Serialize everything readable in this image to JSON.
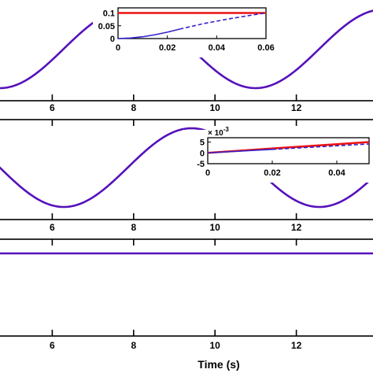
{
  "figure": {
    "xlabel": "Time (s)",
    "colors": {
      "reference": "#ee1111",
      "response": "#3322cc",
      "overlap": "#5511bb"
    }
  },
  "chart_data": [
    {
      "panel": "top",
      "type": "line",
      "xlabel": "",
      "ylabel": "",
      "xlim": [
        4.6,
        14.0
      ],
      "xticks": [
        6,
        8,
        10,
        12
      ],
      "tick_labels": [
        "6",
        "8",
        "10",
        "12"
      ],
      "series": [
        {
          "color": "#5511bb",
          "function": "sine",
          "amplitude": 1,
          "period": 6.283,
          "phase": 0
        }
      ]
    },
    {
      "panel": "top-inset",
      "type": "line",
      "xlim": [
        0,
        0.06
      ],
      "ylim": [
        0,
        0.12
      ],
      "xticks": [
        0,
        0.02,
        0.04,
        0.06
      ],
      "xtick_labels": [
        "0",
        "0.02",
        "0.04",
        "0.06"
      ],
      "yticks": [
        0,
        0.05,
        0.1
      ],
      "ytick_labels": [
        "0",
        "0.05",
        "0.1"
      ],
      "series": [
        {
          "color": "#ee1111",
          "style": "solid",
          "x": [
            0,
            0.06
          ],
          "y": [
            0.1,
            0.1
          ]
        },
        {
          "color": "#3322cc",
          "style": "solid",
          "x": [
            0,
            0.005,
            0.01,
            0.015,
            0.02,
            0.025
          ],
          "y": [
            0,
            0.002,
            0.007,
            0.015,
            0.025,
            0.037
          ]
        },
        {
          "color": "#3322cc",
          "style": "dashed",
          "x": [
            0.025,
            0.03,
            0.035,
            0.04,
            0.045,
            0.05,
            0.055,
            0.06
          ],
          "y": [
            0.037,
            0.048,
            0.059,
            0.068,
            0.077,
            0.085,
            0.093,
            0.1
          ]
        }
      ]
    },
    {
      "panel": "middle",
      "type": "line",
      "xlim": [
        4.6,
        14.0
      ],
      "xticks": [
        6,
        8,
        10,
        12
      ],
      "tick_labels": [
        "6",
        "8",
        "10",
        "12"
      ],
      "series": [
        {
          "color": "#5511bb",
          "function": "sine",
          "amplitude": 1,
          "period": 6.283,
          "phase": -1.571
        }
      ]
    },
    {
      "panel": "middle-inset",
      "type": "line",
      "xlim": [
        0,
        0.05
      ],
      "ylim": [
        -5,
        7
      ],
      "xticks": [
        0,
        0.02,
        0.04
      ],
      "xtick_labels": [
        "0",
        "0.02",
        "0.04"
      ],
      "yticks": [
        -5,
        0,
        5
      ],
      "ytick_labels": [
        "-5",
        "0",
        "5"
      ],
      "y_multiplier_base": "× 10",
      "y_multiplier_exp": "-3",
      "series": [
        {
          "color": "#ee1111",
          "style": "solid",
          "x": [
            0,
            0.05
          ],
          "y": [
            0,
            5
          ]
        },
        {
          "color": "#3322cc",
          "style": "solid",
          "x": [
            0,
            0.02
          ],
          "y": [
            0,
            1.6
          ]
        },
        {
          "color": "#3322cc",
          "style": "dashed",
          "x": [
            0.02,
            0.05
          ],
          "y": [
            1.6,
            4.1
          ]
        }
      ]
    },
    {
      "panel": "bottom",
      "type": "line",
      "xlim": [
        4.6,
        14.0
      ],
      "xticks": [
        6,
        8,
        10,
        12
      ],
      "tick_labels": [
        "6",
        "8",
        "10",
        "12"
      ],
      "series": [
        {
          "color": "#5511bb",
          "function": "constant",
          "value": 0
        }
      ]
    }
  ]
}
